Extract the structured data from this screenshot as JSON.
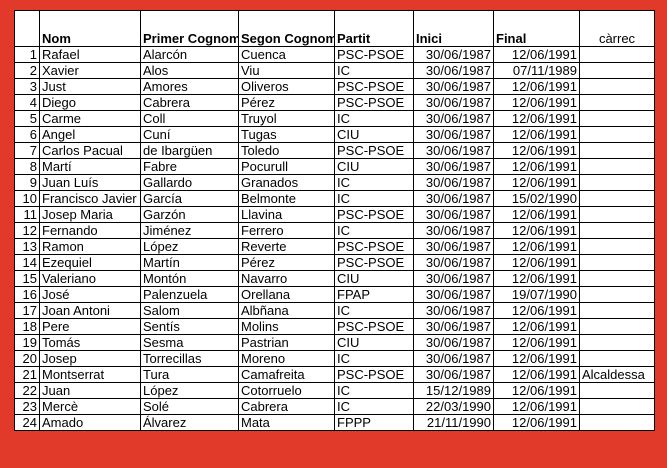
{
  "chart_data": {
    "type": "table",
    "title": "",
    "columns": [
      "",
      "Nom",
      "Primer Cognom",
      "Segon Cognom",
      "Partit",
      "Inici",
      "Final",
      "càrrec"
    ],
    "rows": [
      [
        "1",
        "Rafael",
        "Alarcón",
        "Cuenca",
        "PSC-PSOE",
        "30/06/1987",
        "12/06/1991",
        ""
      ],
      [
        "2",
        "Xavier",
        "Alos",
        "Viu",
        "IC",
        "30/06/1987",
        "07/11/1989",
        ""
      ],
      [
        "3",
        "Just",
        "Amores",
        "Oliveros",
        "PSC-PSOE",
        "30/06/1987",
        "12/06/1991",
        ""
      ],
      [
        "4",
        "Diego",
        "Cabrera",
        "Pérez",
        "PSC-PSOE",
        "30/06/1987",
        "12/06/1991",
        ""
      ],
      [
        "5",
        "Carme",
        "Coll",
        "Truyol",
        "IC",
        "30/06/1987",
        "12/06/1991",
        ""
      ],
      [
        "6",
        "Angel",
        "Cuní",
        "Tugas",
        "CIU",
        "30/06/1987",
        "12/06/1991",
        ""
      ],
      [
        "7",
        "Carlos Pacual",
        "de Ibargüen",
        "Toledo",
        "PSC-PSOE",
        "30/06/1987",
        "12/06/1991",
        ""
      ],
      [
        "8",
        "Martí",
        "Fabre",
        "Pocurull",
        "CIU",
        "30/06/1987",
        "12/06/1991",
        ""
      ],
      [
        "9",
        "Juan Luís",
        "Gallardo",
        "Granados",
        "IC",
        "30/06/1987",
        "12/06/1991",
        ""
      ],
      [
        "10",
        "Francisco Javier",
        "García",
        "Belmonte",
        "IC",
        "30/06/1987",
        "15/02/1990",
        ""
      ],
      [
        "11",
        "Josep Maria",
        "Garzón",
        "Llavina",
        "PSC-PSOE",
        "30/06/1987",
        "12/06/1991",
        ""
      ],
      [
        "12",
        "Fernando",
        "Jiménez",
        "Ferrero",
        "IC",
        "30/06/1987",
        "12/06/1991",
        ""
      ],
      [
        "13",
        "Ramon",
        "López",
        "Reverte",
        "PSC-PSOE",
        "30/06/1987",
        "12/06/1991",
        ""
      ],
      [
        "14",
        "Ezequiel",
        "Martín",
        "Pérez",
        "PSC-PSOE",
        "30/06/1987",
        "12/06/1991",
        ""
      ],
      [
        "15",
        "Valeriano",
        "Montón",
        "Navarro",
        "CIU",
        "30/06/1987",
        "12/06/1991",
        ""
      ],
      [
        "16",
        "José",
        "Palenzuela",
        "Orellana",
        "FPAP",
        "30/06/1987",
        "19/07/1990",
        ""
      ],
      [
        "17",
        "Joan Antoni",
        "Salom",
        "Albñana",
        "IC",
        "30/06/1987",
        "12/06/1991",
        ""
      ],
      [
        "18",
        "Pere",
        "Sentís",
        "Molins",
        "PSC-PSOE",
        "30/06/1987",
        "12/06/1991",
        ""
      ],
      [
        "19",
        "Tomás",
        "Sesma",
        "Pastrian",
        "CIU",
        "30/06/1987",
        "12/06/1991",
        ""
      ],
      [
        "20",
        "Josep",
        "Torrecillas",
        "Moreno",
        "IC",
        "30/06/1987",
        "12/06/1991",
        ""
      ],
      [
        "21",
        "Montserrat",
        "Tura",
        "Camafreita",
        "PSC-PSOE",
        "30/06/1987",
        "12/06/1991",
        "Alcaldessa"
      ],
      [
        "22",
        "Juan",
        "López",
        "Cotorruelo",
        "IC",
        "15/12/1989",
        "12/06/1991",
        ""
      ],
      [
        "23",
        "Mercè",
        "Solé",
        "Cabrera",
        "IC",
        "22/03/1990",
        "12/06/1991",
        ""
      ],
      [
        "24",
        "Amado",
        "Álvarez",
        "Mata",
        "FPPP",
        "21/11/1990",
        "12/06/1991",
        ""
      ]
    ],
    "layout": {
      "grid": "on",
      "header_style": "bold-bottom-aligned",
      "carrec_header_style": "regular-centered"
    }
  },
  "colors": {
    "frame": "#e23a2a",
    "grid": "#000000",
    "cell_background": "#ffffff",
    "text": "#000000"
  }
}
